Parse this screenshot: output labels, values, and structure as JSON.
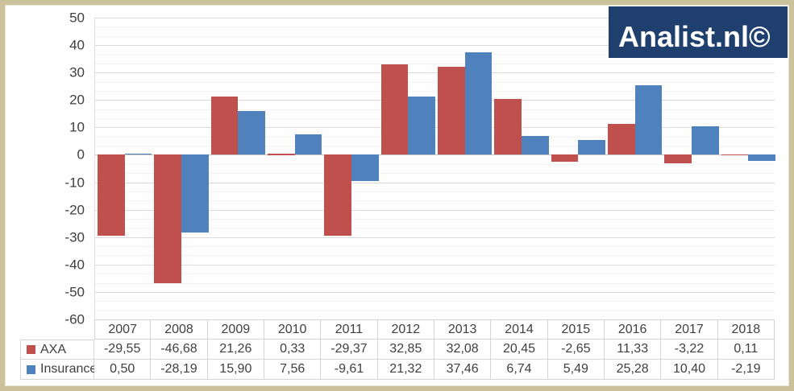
{
  "logo": {
    "text": "Analist.nl©"
  },
  "colors": {
    "frame_border": "#cbc29b",
    "logo_bg": "#1f3f6e",
    "logo_text": "#ffffff",
    "major_grid": "#dadada",
    "minor_grid": "#f3f3f3",
    "zero_line": "#c6c6c6",
    "axis_text": "#3f3f3f",
    "table_border": "#d4d4d4",
    "axa": "#c0504d",
    "insurance": "#4f81bd"
  },
  "chart_data": {
    "type": "bar",
    "title": "",
    "xlabel": "",
    "ylabel": "",
    "categories": [
      "2007",
      "2008",
      "2009",
      "2010",
      "2011",
      "2012",
      "2013",
      "2014",
      "2015",
      "2016",
      "2017",
      "2018"
    ],
    "series": [
      {
        "name": "AXA",
        "color_key": "axa",
        "values": [
          -29.55,
          -46.68,
          21.26,
          0.33,
          -29.37,
          32.85,
          32.08,
          20.45,
          -2.65,
          11.33,
          -3.22,
          0.11
        ]
      },
      {
        "name": "Insurance",
        "color_key": "insurance",
        "values": [
          0.5,
          -28.19,
          15.9,
          7.56,
          -9.61,
          21.32,
          37.46,
          6.74,
          5.49,
          25.28,
          10.4,
          -2.19
        ]
      }
    ],
    "ylim": [
      -60,
      50
    ],
    "ytick_step": 10,
    "yticks": [
      50,
      40,
      30,
      20,
      10,
      0,
      -10,
      -20,
      -30,
      -40,
      -50,
      -60
    ],
    "grid": true,
    "minor_grid_divisions": 3,
    "legend_position": "table-left",
    "number_format": "comma-decimal",
    "data_table_shown": true
  }
}
